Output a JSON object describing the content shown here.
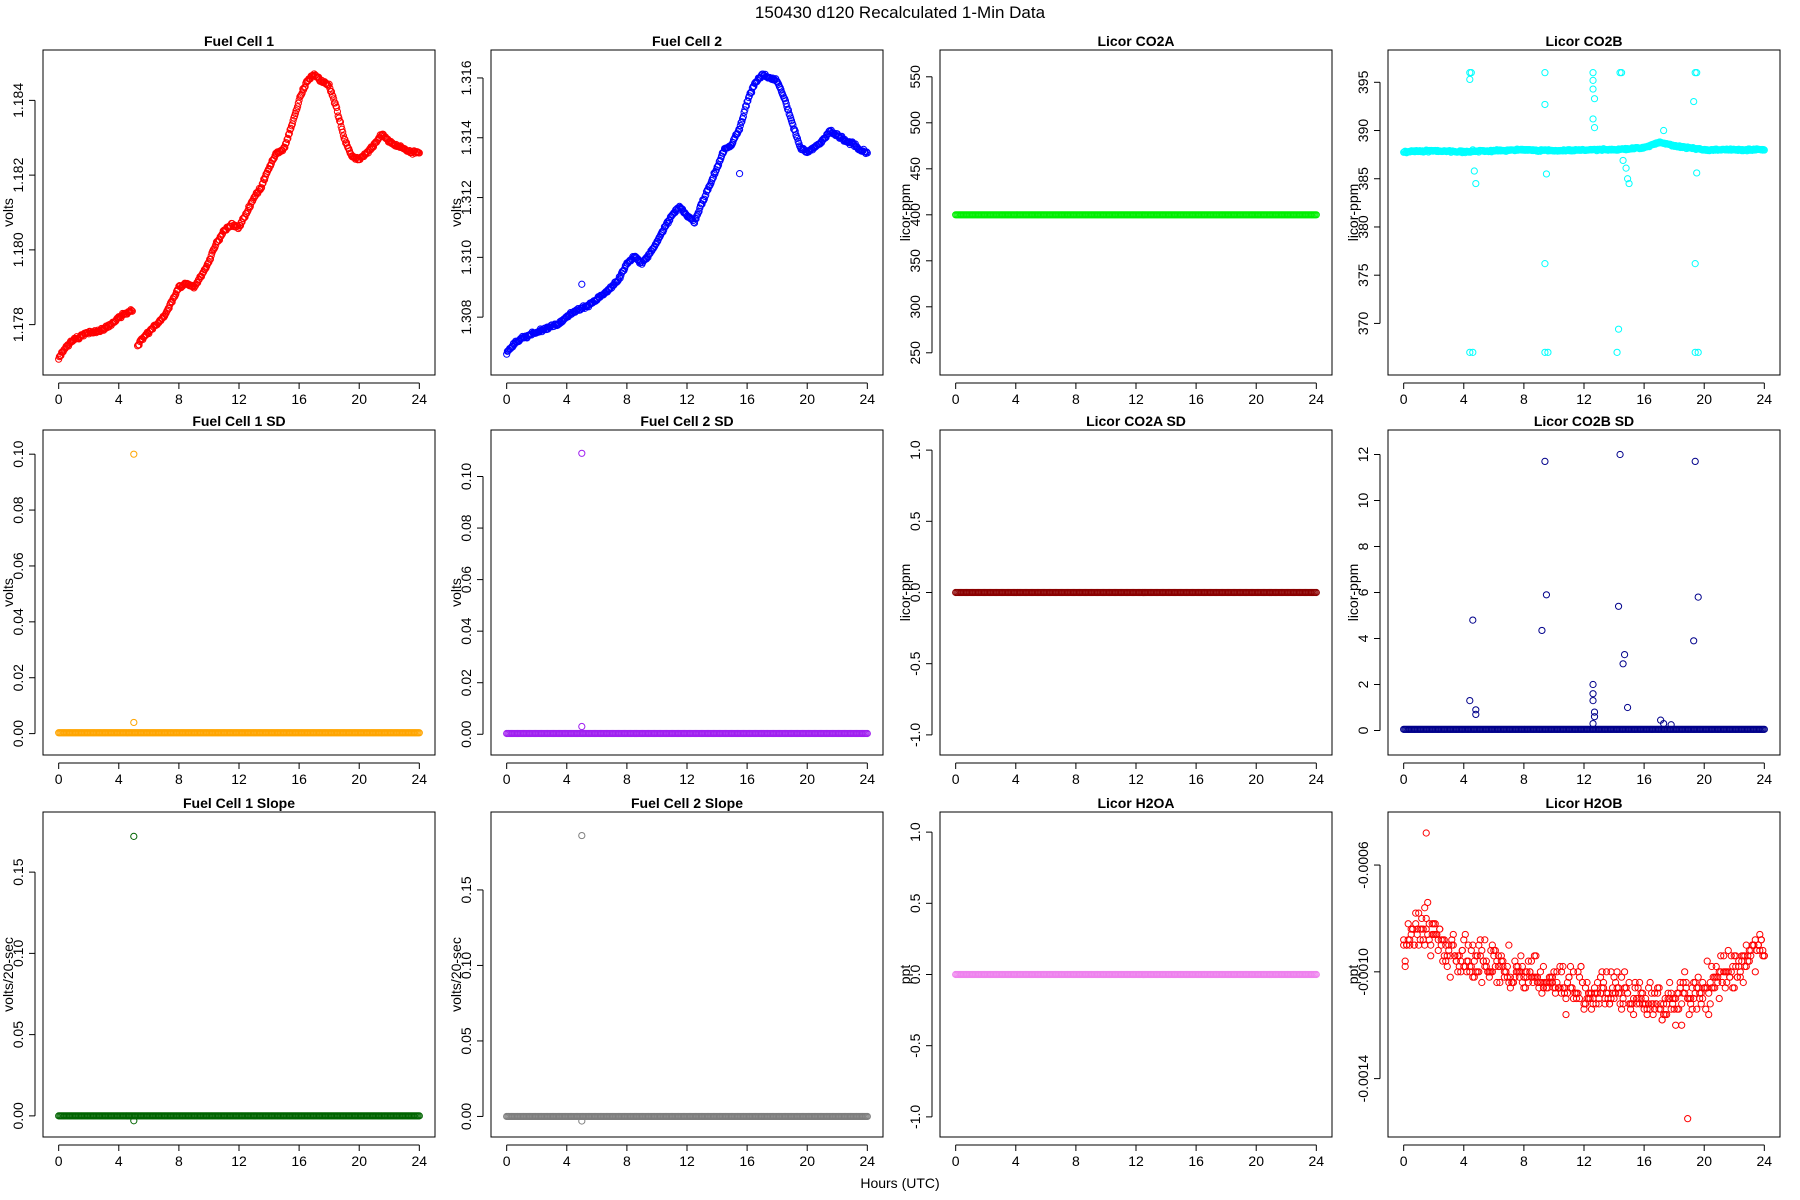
{
  "figure": {
    "title": "150430    d120    Recalculated 1-Min Data",
    "xlabel": "Hours (UTC)"
  },
  "chart_data": [
    {
      "type": "scatter",
      "title": "Fuel Cell 1",
      "ylabel": "volts",
      "color": "#ff0000",
      "xlim": [
        0,
        24
      ],
      "ylim": [
        1.177,
        1.185
      ],
      "xticks": [
        0,
        4,
        8,
        12,
        16,
        20,
        24
      ],
      "xtick_labels": [
        "0",
        "4",
        "8",
        "12",
        "16",
        "20",
        "24"
      ],
      "yticks": [
        1.178,
        1.18,
        1.182,
        1.184
      ],
      "ytick_labels": [
        "1.178",
        "1.180",
        "1.182",
        "1.184"
      ],
      "points": [
        [
          0,
          1.1771
        ],
        [
          0.5,
          1.1774
        ],
        [
          1,
          1.1776
        ],
        [
          1.5,
          1.1777
        ],
        [
          2,
          1.1778
        ],
        [
          2.5,
          1.1778
        ],
        [
          3,
          1.1779
        ],
        [
          3.5,
          1.178
        ],
        [
          4,
          1.1782
        ],
        [
          4.5,
          1.1783
        ],
        [
          5,
          1.1784
        ],
        [
          5.2,
          1.1774
        ],
        [
          5.5,
          1.1776
        ],
        [
          6,
          1.1778
        ],
        [
          6.5,
          1.178
        ],
        [
          7,
          1.1782
        ],
        [
          7.5,
          1.1786
        ],
        [
          8,
          1.179
        ],
        [
          8.5,
          1.1791
        ],
        [
          9,
          1.179
        ],
        [
          9.5,
          1.1793
        ],
        [
          10,
          1.1797
        ],
        [
          10.5,
          1.1802
        ],
        [
          11,
          1.1805
        ],
        [
          11.5,
          1.1807
        ],
        [
          12,
          1.1806
        ],
        [
          12.5,
          1.181
        ],
        [
          13,
          1.1814
        ],
        [
          13.5,
          1.1817
        ],
        [
          14,
          1.1822
        ],
        [
          14.5,
          1.1826
        ],
        [
          15,
          1.1827
        ],
        [
          15.5,
          1.1833
        ],
        [
          16,
          1.184
        ],
        [
          16.5,
          1.1845
        ],
        [
          17,
          1.1847
        ],
        [
          17.5,
          1.1845
        ],
        [
          18,
          1.1844
        ],
        [
          18.5,
          1.1838
        ],
        [
          19,
          1.183
        ],
        [
          19.5,
          1.1825
        ],
        [
          20,
          1.1824
        ],
        [
          20.5,
          1.1826
        ],
        [
          21,
          1.1828
        ],
        [
          21.5,
          1.1831
        ],
        [
          22,
          1.1829
        ],
        [
          22.5,
          1.1828
        ],
        [
          23,
          1.1827
        ],
        [
          23.5,
          1.1826
        ],
        [
          24,
          1.1826
        ]
      ]
    },
    {
      "type": "scatter",
      "title": "Fuel Cell 2",
      "ylabel": "volts",
      "color": "#0000ff",
      "xlim": [
        0,
        24
      ],
      "ylim": [
        1.3065,
        1.3165
      ],
      "xticks": [
        0,
        4,
        8,
        12,
        16,
        20,
        24
      ],
      "xtick_labels": [
        "0",
        "4",
        "8",
        "12",
        "16",
        "20",
        "24"
      ],
      "yticks": [
        1.308,
        1.31,
        1.312,
        1.314,
        1.316
      ],
      "ytick_labels": [
        "1.308",
        "1.310",
        "1.312",
        "1.314",
        "1.316"
      ],
      "points": [
        [
          0,
          1.3068
        ],
        [
          0.5,
          1.3071
        ],
        [
          1,
          1.3073
        ],
        [
          1.5,
          1.3074
        ],
        [
          2,
          1.3075
        ],
        [
          2.5,
          1.3076
        ],
        [
          3,
          1.3077
        ],
        [
          3.5,
          1.3078
        ],
        [
          4,
          1.308
        ],
        [
          4.5,
          1.3082
        ],
        [
          5,
          1.3083
        ],
        [
          5.5,
          1.3084
        ],
        [
          6,
          1.3086
        ],
        [
          6.5,
          1.3088
        ],
        [
          7,
          1.309
        ],
        [
          7.5,
          1.3093
        ],
        [
          8,
          1.3098
        ],
        [
          8.5,
          1.31
        ],
        [
          9,
          1.3098
        ],
        [
          9.5,
          1.3101
        ],
        [
          10,
          1.3105
        ],
        [
          10.5,
          1.311
        ],
        [
          11,
          1.3114
        ],
        [
          11.5,
          1.3117
        ],
        [
          12,
          1.3114
        ],
        [
          12.5,
          1.3112
        ],
        [
          13,
          1.3118
        ],
        [
          13.5,
          1.3124
        ],
        [
          14,
          1.313
        ],
        [
          14.5,
          1.3136
        ],
        [
          15,
          1.3138
        ],
        [
          15.5,
          1.3143
        ],
        [
          16,
          1.3152
        ],
        [
          16.5,
          1.3158
        ],
        [
          17,
          1.3161
        ],
        [
          17.5,
          1.316
        ],
        [
          18,
          1.3159
        ],
        [
          18.5,
          1.3153
        ],
        [
          19,
          1.3145
        ],
        [
          19.5,
          1.3137
        ],
        [
          20,
          1.3135
        ],
        [
          20.5,
          1.3137
        ],
        [
          21,
          1.3139
        ],
        [
          21.5,
          1.3142
        ],
        [
          22,
          1.3141
        ],
        [
          22.5,
          1.3139
        ],
        [
          23,
          1.3138
        ],
        [
          23.5,
          1.3136
        ],
        [
          24,
          1.3135
        ]
      ],
      "outliers": [
        [
          5,
          1.3091
        ],
        [
          15.5,
          1.3128
        ]
      ]
    },
    {
      "type": "scatter",
      "title": "Licor CO2A",
      "ylabel": "licor-ppm",
      "color": "#00ee00",
      "xlim": [
        0,
        24
      ],
      "ylim": [
        240,
        565
      ],
      "xticks": [
        0,
        4,
        8,
        12,
        16,
        20,
        24
      ],
      "xtick_labels": [
        "0",
        "4",
        "8",
        "12",
        "16",
        "20",
        "24"
      ],
      "yticks": [
        250,
        300,
        350,
        400,
        450,
        500,
        550
      ],
      "ytick_labels": [
        "250",
        "300",
        "350",
        "400",
        "450",
        "500",
        "550"
      ],
      "constant": 400
    },
    {
      "type": "scatter",
      "title": "Licor CO2B",
      "ylabel": "licor-ppm",
      "color": "#00ffff",
      "xlim": [
        0,
        24
      ],
      "ylim": [
        366,
        397
      ],
      "xticks": [
        0,
        4,
        8,
        12,
        16,
        20,
        24
      ],
      "xtick_labels": [
        "0",
        "4",
        "8",
        "12",
        "16",
        "20",
        "24"
      ],
      "yticks": [
        370,
        375,
        380,
        385,
        390,
        395
      ],
      "ytick_labels": [
        "370",
        "375",
        "380",
        "385",
        "390",
        "395"
      ],
      "points": [
        [
          0,
          387.8
        ],
        [
          2,
          387.9
        ],
        [
          4,
          387.8
        ],
        [
          6,
          387.9
        ],
        [
          8,
          388
        ],
        [
          10,
          387.9
        ],
        [
          12,
          388
        ],
        [
          14,
          388
        ],
        [
          16,
          388.2
        ],
        [
          17,
          388.8
        ],
        [
          18,
          388.4
        ],
        [
          20,
          388
        ],
        [
          22,
          388
        ],
        [
          24,
          388
        ]
      ],
      "outliers": [
        [
          4.4,
          396
        ],
        [
          4.5,
          396
        ],
        [
          4.4,
          395.3
        ],
        [
          4.6,
          388
        ],
        [
          4.7,
          385.8
        ],
        [
          4.8,
          384.5
        ],
        [
          4.6,
          367
        ],
        [
          4.4,
          367
        ],
        [
          9.4,
          396
        ],
        [
          9.4,
          392.7
        ],
        [
          9.5,
          385.5
        ],
        [
          9.4,
          376.2
        ],
        [
          9.4,
          367
        ],
        [
          9.6,
          367
        ],
        [
          12.6,
          396
        ],
        [
          12.6,
          395.2
        ],
        [
          12.6,
          394.3
        ],
        [
          12.7,
          393.3
        ],
        [
          12.6,
          391.2
        ],
        [
          12.7,
          390.3
        ],
        [
          14.4,
          396
        ],
        [
          14.5,
          396
        ],
        [
          14.3,
          369.4
        ],
        [
          14.2,
          367
        ],
        [
          14.6,
          386.9
        ],
        [
          14.8,
          386.1
        ],
        [
          14.9,
          385
        ],
        [
          15,
          384.5
        ],
        [
          17.3,
          390
        ],
        [
          19.4,
          396
        ],
        [
          19.5,
          396
        ],
        [
          19.3,
          393
        ],
        [
          19.5,
          385.6
        ],
        [
          19.4,
          376.2
        ],
        [
          19.4,
          367
        ],
        [
          19.6,
          367
        ]
      ]
    },
    {
      "type": "scatter",
      "title": "Fuel Cell 1 SD",
      "ylabel": "volts",
      "color": "#ffa500",
      "xlim": [
        0,
        24
      ],
      "ylim": [
        -0.003,
        0.104
      ],
      "xticks": [
        0,
        4,
        8,
        12,
        16,
        20,
        24
      ],
      "xtick_labels": [
        "0",
        "4",
        "8",
        "12",
        "16",
        "20",
        "24"
      ],
      "yticks": [
        0,
        0.02,
        0.04,
        0.06,
        0.08,
        0.1
      ],
      "ytick_labels": [
        "0.00",
        "0.02",
        "0.04",
        "0.06",
        "0.08",
        "0.10"
      ],
      "constant": 0.0003,
      "outliers": [
        [
          5,
          0.1
        ],
        [
          5,
          0.004
        ]
      ]
    },
    {
      "type": "scatter",
      "title": "Fuel Cell 2 SD",
      "ylabel": "volts",
      "color": "#a020f0",
      "xlim": [
        0,
        24
      ],
      "ylim": [
        -0.003,
        0.113
      ],
      "xticks": [
        0,
        4,
        8,
        12,
        16,
        20,
        24
      ],
      "xtick_labels": [
        "0",
        "4",
        "8",
        "12",
        "16",
        "20",
        "24"
      ],
      "yticks": [
        0,
        0.02,
        0.04,
        0.06,
        0.08,
        0.1
      ],
      "ytick_labels": [
        "0.00",
        "0.02",
        "0.04",
        "0.06",
        "0.08",
        "0.10"
      ],
      "constant": 0.0003,
      "outliers": [
        [
          5,
          0.109
        ],
        [
          5,
          0.003
        ]
      ]
    },
    {
      "type": "scatter",
      "title": "Licor CO2A SD",
      "ylabel": "licor-ppm",
      "color": "#8b0000",
      "xlim": [
        0,
        24
      ],
      "ylim": [
        -1.05,
        1.05
      ],
      "xticks": [
        0,
        4,
        8,
        12,
        16,
        20,
        24
      ],
      "xtick_labels": [
        "0",
        "4",
        "8",
        "12",
        "16",
        "20",
        "24"
      ],
      "yticks": [
        -1,
        -0.5,
        0,
        0.5,
        1
      ],
      "ytick_labels": [
        "-1.0",
        "-0.5",
        "0.0",
        "0.5",
        "1.0"
      ],
      "constant": 0
    },
    {
      "type": "scatter",
      "title": "Licor CO2B SD",
      "ylabel": "licor-ppm",
      "color": "#00008b",
      "xlim": [
        0,
        24
      ],
      "ylim": [
        -0.5,
        12.5
      ],
      "xticks": [
        0,
        4,
        8,
        12,
        16,
        20,
        24
      ],
      "xtick_labels": [
        "0",
        "4",
        "8",
        "12",
        "16",
        "20",
        "24"
      ],
      "yticks": [
        0,
        2,
        4,
        6,
        8,
        10,
        12
      ],
      "ytick_labels": [
        "0",
        "2",
        "4",
        "6",
        "8",
        "10",
        "12"
      ],
      "constant": 0.05,
      "outliers": [
        [
          4.4,
          1.3
        ],
        [
          4.6,
          4.8
        ],
        [
          4.8,
          0.9
        ],
        [
          4.8,
          0.7
        ],
        [
          9.2,
          4.35
        ],
        [
          9.4,
          11.7
        ],
        [
          9.5,
          5.9
        ],
        [
          12.6,
          2.0
        ],
        [
          12.6,
          1.6
        ],
        [
          12.6,
          1.3
        ],
        [
          12.7,
          0.8
        ],
        [
          12.7,
          0.6
        ],
        [
          12.6,
          0.3
        ],
        [
          14.3,
          5.4
        ],
        [
          14.4,
          12
        ],
        [
          14.6,
          2.9
        ],
        [
          14.7,
          3.3
        ],
        [
          14.9,
          1.0
        ],
        [
          17.1,
          0.45
        ],
        [
          17.3,
          0.3
        ],
        [
          17.8,
          0.25
        ],
        [
          19.3,
          3.9
        ],
        [
          19.4,
          11.7
        ],
        [
          19.6,
          5.8
        ]
      ]
    },
    {
      "type": "scatter",
      "title": "Fuel Cell 1 Slope",
      "ylabel": "volts/20-sec",
      "color": "#006400",
      "xlim": [
        0,
        24
      ],
      "ylim": [
        -0.005,
        0.179
      ],
      "xticks": [
        0,
        4,
        8,
        12,
        16,
        20,
        24
      ],
      "xtick_labels": [
        "0",
        "4",
        "8",
        "12",
        "16",
        "20",
        "24"
      ],
      "yticks": [
        0,
        0.05,
        0.1,
        0.15
      ],
      "ytick_labels": [
        "0.00",
        "0.05",
        "0.10",
        "0.15"
      ],
      "constant": 0,
      "outliers": [
        [
          5,
          0.172
        ],
        [
          5,
          -0.003
        ]
      ]
    },
    {
      "type": "scatter",
      "title": "Fuel Cell 2 Slope",
      "ylabel": "volts/20-sec",
      "color": "#7f7f7f",
      "xlim": [
        0,
        24
      ],
      "ylim": [
        -0.005,
        0.193
      ],
      "xticks": [
        0,
        4,
        8,
        12,
        16,
        20,
        24
      ],
      "xtick_labels": [
        "0",
        "4",
        "8",
        "12",
        "16",
        "20",
        "24"
      ],
      "yticks": [
        0,
        0.05,
        0.1,
        0.15
      ],
      "ytick_labels": [
        "0.00",
        "0.05",
        "0.10",
        "0.15"
      ],
      "constant": 0,
      "outliers": [
        [
          5,
          0.186
        ],
        [
          5,
          -0.003
        ]
      ]
    },
    {
      "type": "scatter",
      "title": "Licor H2OA",
      "ylabel": "ppt",
      "color": "#ee82ee",
      "xlim": [
        0,
        24
      ],
      "ylim": [
        -1.05,
        1.05
      ],
      "xticks": [
        0,
        4,
        8,
        12,
        16,
        20,
        24
      ],
      "xtick_labels": [
        "0",
        "4",
        "8",
        "12",
        "16",
        "20",
        "24"
      ],
      "yticks": [
        -1,
        -0.5,
        0,
        0.5,
        1
      ],
      "ytick_labels": [
        "-1.0",
        "-0.5",
        "0.0",
        "0.5",
        "1.0"
      ],
      "constant": 0
    },
    {
      "type": "scatter",
      "title": "Licor H2OB",
      "ylabel": "ppt",
      "color": "#ff0000",
      "xlim": [
        0,
        24
      ],
      "ylim": [
        -0.00157,
        -0.00045
      ],
      "xticks": [
        0,
        4,
        8,
        12,
        16,
        20,
        24
      ],
      "xtick_labels": [
        "0",
        "4",
        "8",
        "12",
        "16",
        "20",
        "24"
      ],
      "yticks": [
        -0.0014,
        -0.001,
        -0.0006
      ],
      "ytick_labels": [
        "-0.0014",
        "-0.0010",
        "-0.0006"
      ],
      "levels_start": -0.0005,
      "levels_step": -2e-05,
      "levels_count": 53,
      "profile": [
        [
          0,
          -0.0009
        ],
        [
          1.5,
          -0.00082
        ],
        [
          3,
          -0.00092
        ],
        [
          5,
          -0.00097
        ],
        [
          8,
          -0.001
        ],
        [
          10,
          -0.00104
        ],
        [
          12,
          -0.00107
        ],
        [
          14,
          -0.00108
        ],
        [
          16,
          -0.0011
        ],
        [
          18,
          -0.00111
        ],
        [
          19,
          -0.0011
        ],
        [
          21,
          -0.00103
        ],
        [
          22.5,
          -0.00096
        ],
        [
          24,
          -0.00088
        ]
      ],
      "spread": 0.00012,
      "outliers": [
        [
          1.5,
          -0.00048
        ],
        [
          18.9,
          -0.00155
        ]
      ]
    }
  ]
}
